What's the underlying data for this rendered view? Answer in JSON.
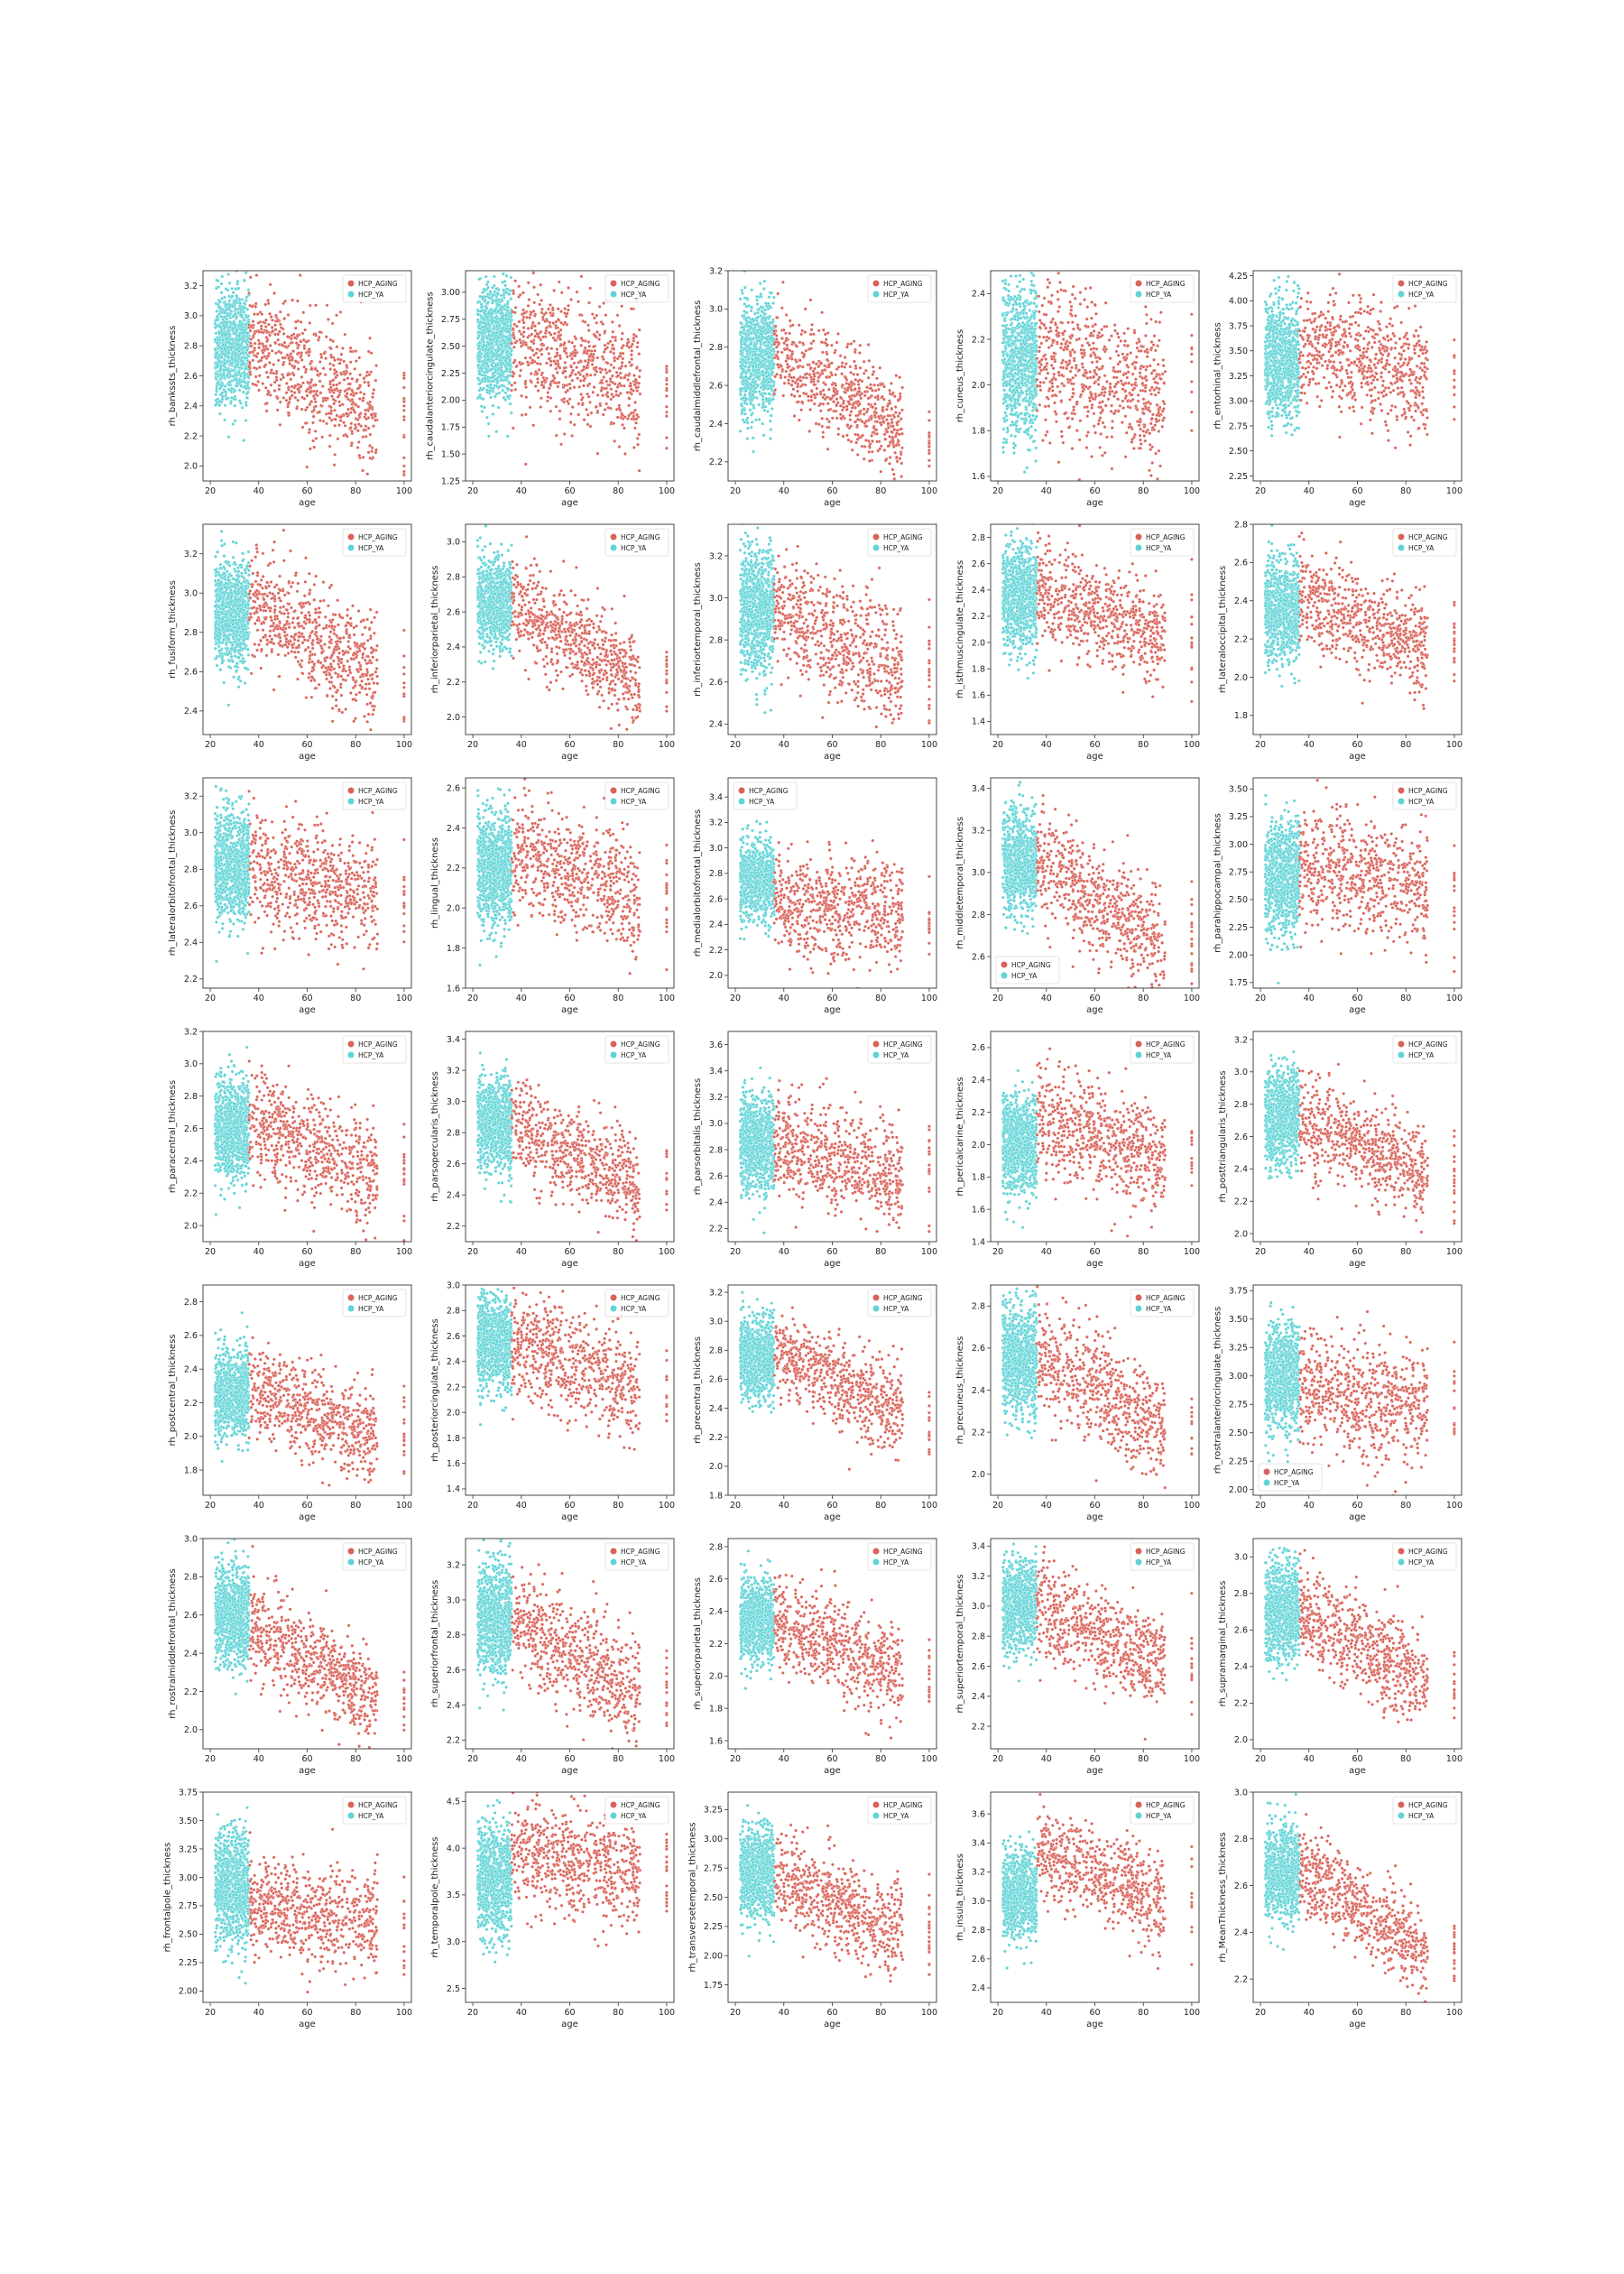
{
  "figure": {
    "legend_labels": [
      "HCP_AGING",
      "HCP_YA"
    ],
    "colors": {
      "HCP_AGING": "#d9635a",
      "HCP_YA": "#5fd3d6"
    },
    "x_label": "age",
    "x_ticks": [
      20,
      40,
      60,
      80,
      100
    ]
  },
  "chart_data": [
    {
      "type": "scatter",
      "ylabel": "rh_bankssts_thickness",
      "yticks": [
        2.0,
        2.2,
        2.4,
        2.6,
        2.8,
        3.0,
        3.2
      ],
      "ylim": [
        1.9,
        3.3
      ],
      "xlim": [
        17,
        103
      ],
      "ya_mean": 2.8,
      "ya_sd": 0.18,
      "ag_start": 2.85,
      "ag_end": 2.35,
      "ag_sd": 0.2,
      "legend": "top-right",
      "series": [
        {
          "name": "HCP_AGING"
        },
        {
          "name": "HCP_YA"
        }
      ]
    },
    {
      "type": "scatter",
      "ylabel": "rh_caudalanteriorcingulate_thickness",
      "yticks": [
        1.25,
        1.5,
        1.75,
        2.0,
        2.25,
        2.5,
        2.75,
        3.0
      ],
      "ylim": [
        1.25,
        3.2
      ],
      "xlim": [
        17,
        103
      ],
      "ya_mean": 2.55,
      "ya_sd": 0.28,
      "ag_start": 2.55,
      "ag_end": 2.15,
      "ag_sd": 0.3,
      "legend": "top-right",
      "series": [
        {
          "name": "HCP_AGING"
        },
        {
          "name": "HCP_YA"
        }
      ]
    },
    {
      "type": "scatter",
      "ylabel": "rh_caudalmiddlefrontal_thickness",
      "yticks": [
        2.2,
        2.4,
        2.6,
        2.8,
        3.0,
        3.2
      ],
      "ylim": [
        2.1,
        3.2
      ],
      "xlim": [
        17,
        103
      ],
      "ya_mean": 2.75,
      "ya_sd": 0.15,
      "ag_start": 2.8,
      "ag_end": 2.35,
      "ag_sd": 0.13,
      "legend": "top-right",
      "series": [
        {
          "name": "HCP_AGING"
        },
        {
          "name": "HCP_YA"
        }
      ]
    },
    {
      "type": "scatter",
      "ylabel": "rh_cuneus_thickness",
      "yticks": [
        1.6,
        1.8,
        2.0,
        2.2,
        2.4
      ],
      "ylim": [
        1.58,
        2.5
      ],
      "xlim": [
        17,
        103
      ],
      "ya_mean": 2.1,
      "ya_sd": 0.16,
      "ag_start": 2.15,
      "ag_end": 1.95,
      "ag_sd": 0.17,
      "legend": "top-right",
      "series": [
        {
          "name": "HCP_AGING"
        },
        {
          "name": "HCP_YA"
        }
      ]
    },
    {
      "type": "scatter",
      "ylabel": "rh_entorhinal_thickness",
      "yticks": [
        2.25,
        2.5,
        2.75,
        3.0,
        3.25,
        3.5,
        3.75,
        4.0,
        4.25
      ],
      "ylim": [
        2.2,
        4.3
      ],
      "xlim": [
        17,
        103
      ],
      "ya_mean": 3.4,
      "ya_sd": 0.3,
      "ag_start": 3.55,
      "ag_end": 3.25,
      "ag_sd": 0.28,
      "legend": "top-right",
      "series": [
        {
          "name": "HCP_AGING"
        },
        {
          "name": "HCP_YA"
        }
      ]
    },
    {
      "type": "scatter",
      "ylabel": "rh_fusiform_thickness",
      "yticks": [
        2.4,
        2.6,
        2.8,
        3.0,
        3.2
      ],
      "ylim": [
        2.28,
        3.35
      ],
      "xlim": [
        17,
        103
      ],
      "ya_mean": 2.9,
      "ya_sd": 0.13,
      "ag_start": 2.95,
      "ag_end": 2.6,
      "ag_sd": 0.14,
      "legend": "top-right",
      "series": [
        {
          "name": "HCP_AGING"
        },
        {
          "name": "HCP_YA"
        }
      ]
    },
    {
      "type": "scatter",
      "ylabel": "rh_inferiorparietal_thickness",
      "yticks": [
        2.0,
        2.2,
        2.4,
        2.6,
        2.8,
        3.0
      ],
      "ylim": [
        1.9,
        3.1
      ],
      "xlim": [
        17,
        103
      ],
      "ya_mean": 2.65,
      "ya_sd": 0.12,
      "ag_start": 2.65,
      "ag_end": 2.2,
      "ag_sd": 0.13,
      "legend": "top-right",
      "series": [
        {
          "name": "HCP_AGING"
        },
        {
          "name": "HCP_YA"
        }
      ]
    },
    {
      "type": "scatter",
      "ylabel": "rh_inferiortemporal_thickness",
      "yticks": [
        2.4,
        2.6,
        2.8,
        3.0,
        3.2
      ],
      "ylim": [
        2.35,
        3.35
      ],
      "xlim": [
        17,
        103
      ],
      "ya_mean": 2.95,
      "ya_sd": 0.15,
      "ag_start": 2.95,
      "ag_end": 2.65,
      "ag_sd": 0.14,
      "legend": "top-right",
      "series": [
        {
          "name": "HCP_AGING"
        },
        {
          "name": "HCP_YA"
        }
      ]
    },
    {
      "type": "scatter",
      "ylabel": "rh_isthmuscingulate_thickness",
      "yticks": [
        1.4,
        1.6,
        1.8,
        2.0,
        2.2,
        2.4,
        2.6,
        2.8
      ],
      "ylim": [
        1.3,
        2.9
      ],
      "xlim": [
        17,
        103
      ],
      "ya_mean": 2.35,
      "ya_sd": 0.2,
      "ag_start": 2.4,
      "ag_end": 2.05,
      "ag_sd": 0.18,
      "legend": "top-right",
      "series": [
        {
          "name": "HCP_AGING"
        },
        {
          "name": "HCP_YA"
        }
      ]
    },
    {
      "type": "scatter",
      "ylabel": "rh_lateraloccipital_thickness",
      "yticks": [
        1.8,
        2.0,
        2.2,
        2.4,
        2.6,
        2.8
      ],
      "ylim": [
        1.7,
        2.8
      ],
      "xlim": [
        17,
        103
      ],
      "ya_mean": 2.35,
      "ya_sd": 0.13,
      "ag_start": 2.42,
      "ag_end": 2.15,
      "ag_sd": 0.13,
      "legend": "top-right",
      "series": [
        {
          "name": "HCP_AGING"
        },
        {
          "name": "HCP_YA"
        }
      ]
    },
    {
      "type": "scatter",
      "ylabel": "rh_lateralorbitofrontal_thickness",
      "yticks": [
        2.2,
        2.4,
        2.6,
        2.8,
        3.0,
        3.2
      ],
      "ylim": [
        2.15,
        3.3
      ],
      "xlim": [
        17,
        103
      ],
      "ya_mean": 2.82,
      "ya_sd": 0.15,
      "ag_start": 2.8,
      "ag_end": 2.65,
      "ag_sd": 0.16,
      "legend": "top-right",
      "series": [
        {
          "name": "HCP_AGING"
        },
        {
          "name": "HCP_YA"
        }
      ]
    },
    {
      "type": "scatter",
      "ylabel": "rh_lingual_thickness",
      "yticks": [
        1.6,
        1.8,
        2.0,
        2.2,
        2.4,
        2.6
      ],
      "ylim": [
        1.6,
        2.65
      ],
      "xlim": [
        17,
        103
      ],
      "ya_mean": 2.2,
      "ya_sd": 0.14,
      "ag_start": 2.3,
      "ag_end": 2.05,
      "ag_sd": 0.14,
      "legend": "top-right",
      "series": [
        {
          "name": "HCP_AGING"
        },
        {
          "name": "HCP_YA"
        }
      ]
    },
    {
      "type": "scatter",
      "ylabel": "rh_medialorbitofrontal_thickness",
      "yticks": [
        2.0,
        2.2,
        2.4,
        2.6,
        2.8,
        3.0,
        3.2,
        3.4
      ],
      "ylim": [
        1.9,
        3.55
      ],
      "xlim": [
        17,
        103
      ],
      "ya_mean": 2.75,
      "ya_sd": 0.15,
      "ag_start": 2.55,
      "ag_end": 2.5,
      "ag_sd": 0.2,
      "legend": "top-left",
      "series": [
        {
          "name": "HCP_AGING"
        },
        {
          "name": "HCP_YA"
        }
      ]
    },
    {
      "type": "scatter",
      "ylabel": "rh_middletemporal_thickness",
      "yticks": [
        2.6,
        2.8,
        3.0,
        3.2,
        3.4
      ],
      "ylim": [
        2.45,
        3.45
      ],
      "xlim": [
        17,
        103
      ],
      "ya_mean": 3.05,
      "ya_sd": 0.12,
      "ag_start": 3.05,
      "ag_end": 2.65,
      "ag_sd": 0.13,
      "legend": "bottom-left",
      "series": [
        {
          "name": "HCP_AGING"
        },
        {
          "name": "HCP_YA"
        }
      ]
    },
    {
      "type": "scatter",
      "ylabel": "rh_parahippocampal_thickness",
      "yticks": [
        1.75,
        2.0,
        2.25,
        2.5,
        2.75,
        3.0,
        3.25,
        3.5
      ],
      "ylim": [
        1.7,
        3.6
      ],
      "xlim": [
        17,
        103
      ],
      "ya_mean": 2.72,
      "ya_sd": 0.25,
      "ag_start": 2.85,
      "ag_end": 2.55,
      "ag_sd": 0.27,
      "legend": "top-right",
      "series": [
        {
          "name": "HCP_AGING"
        },
        {
          "name": "HCP_YA"
        }
      ]
    },
    {
      "type": "scatter",
      "ylabel": "rh_paracentral_thickness",
      "yticks": [
        2.0,
        2.2,
        2.4,
        2.6,
        2.8,
        3.0,
        3.2
      ],
      "ylim": [
        1.9,
        3.2
      ],
      "xlim": [
        17,
        103
      ],
      "ya_mean": 2.6,
      "ya_sd": 0.16,
      "ag_start": 2.65,
      "ag_end": 2.3,
      "ag_sd": 0.17,
      "legend": "top-right",
      "series": [
        {
          "name": "HCP_AGING"
        },
        {
          "name": "HCP_YA"
        }
      ]
    },
    {
      "type": "scatter",
      "ylabel": "rh_parsopercularis_thickness",
      "yticks": [
        2.2,
        2.4,
        2.6,
        2.8,
        3.0,
        3.2,
        3.4
      ],
      "ylim": [
        2.1,
        3.45
      ],
      "xlim": [
        17,
        103
      ],
      "ya_mean": 2.85,
      "ya_sd": 0.15,
      "ag_start": 2.85,
      "ag_end": 2.45,
      "ag_sd": 0.15,
      "legend": "top-right",
      "series": [
        {
          "name": "HCP_AGING"
        },
        {
          "name": "HCP_YA"
        }
      ]
    },
    {
      "type": "scatter",
      "ylabel": "rh_parsorbitalis_thickness",
      "yticks": [
        2.2,
        2.4,
        2.6,
        2.8,
        3.0,
        3.2,
        3.4,
        3.6
      ],
      "ylim": [
        2.1,
        3.7
      ],
      "xlim": [
        17,
        103
      ],
      "ya_mean": 2.85,
      "ya_sd": 0.18,
      "ag_start": 2.85,
      "ag_end": 2.6,
      "ag_sd": 0.2,
      "legend": "top-right",
      "series": [
        {
          "name": "HCP_AGING"
        },
        {
          "name": "HCP_YA"
        }
      ]
    },
    {
      "type": "scatter",
      "ylabel": "rh_pericalcarine_thickness",
      "yticks": [
        1.4,
        1.6,
        1.8,
        2.0,
        2.2,
        2.4,
        2.6
      ],
      "ylim": [
        1.4,
        2.7
      ],
      "xlim": [
        17,
        103
      ],
      "ya_mean": 2.0,
      "ya_sd": 0.15,
      "ag_start": 2.15,
      "ag_end": 1.9,
      "ag_sd": 0.17,
      "legend": "top-right",
      "series": [
        {
          "name": "HCP_AGING"
        },
        {
          "name": "HCP_YA"
        }
      ]
    },
    {
      "type": "scatter",
      "ylabel": "rh_posttriangularis_thickness",
      "yticks": [
        2.0,
        2.2,
        2.4,
        2.6,
        2.8,
        3.0,
        3.2
      ],
      "ylim": [
        1.95,
        3.25
      ],
      "xlim": [
        17,
        103
      ],
      "ya_mean": 2.72,
      "ya_sd": 0.15,
      "ag_start": 2.72,
      "ag_end": 2.35,
      "ag_sd": 0.15,
      "legend": "top-right",
      "series": [
        {
          "name": "HCP_AGING"
        },
        {
          "name": "HCP_YA"
        }
      ]
    },
    {
      "type": "scatter",
      "ylabel": "rh_postcentral_thickness",
      "yticks": [
        1.8,
        2.0,
        2.2,
        2.4,
        2.6,
        2.8
      ],
      "ylim": [
        1.65,
        2.9
      ],
      "xlim": [
        17,
        103
      ],
      "ya_mean": 2.25,
      "ya_sd": 0.13,
      "ag_start": 2.28,
      "ag_end": 2.0,
      "ag_sd": 0.13,
      "legend": "top-right",
      "series": [
        {
          "name": "HCP_AGING"
        },
        {
          "name": "HCP_YA"
        }
      ]
    },
    {
      "type": "scatter",
      "ylabel": "rh_posteriorcingulate_thickness",
      "yticks": [
        1.4,
        1.6,
        1.8,
        2.0,
        2.2,
        2.4,
        2.6,
        2.8,
        3.0
      ],
      "ylim": [
        1.35,
        3.0
      ],
      "xlim": [
        17,
        103
      ],
      "ya_mean": 2.55,
      "ya_sd": 0.18,
      "ag_start": 2.55,
      "ag_end": 2.15,
      "ag_sd": 0.2,
      "legend": "top-right",
      "series": [
        {
          "name": "HCP_AGING"
        },
        {
          "name": "HCP_YA"
        }
      ]
    },
    {
      "type": "scatter",
      "ylabel": "rh_precentral_thickness",
      "yticks": [
        1.8,
        2.0,
        2.2,
        2.4,
        2.6,
        2.8,
        3.0,
        3.2
      ],
      "ylim": [
        1.8,
        3.25
      ],
      "xlim": [
        17,
        103
      ],
      "ya_mean": 2.75,
      "ya_sd": 0.14,
      "ag_start": 2.8,
      "ag_end": 2.35,
      "ag_sd": 0.15,
      "legend": "top-right",
      "series": [
        {
          "name": "HCP_AGING"
        },
        {
          "name": "HCP_YA"
        }
      ]
    },
    {
      "type": "scatter",
      "ylabel": "rh_precuneus_thickness",
      "yticks": [
        2.0,
        2.2,
        2.4,
        2.6,
        2.8
      ],
      "ylim": [
        1.9,
        2.9
      ],
      "xlim": [
        17,
        103
      ],
      "ya_mean": 2.55,
      "ya_sd": 0.13,
      "ag_start": 2.6,
      "ag_end": 2.2,
      "ag_sd": 0.13,
      "legend": "top-right",
      "series": [
        {
          "name": "HCP_AGING"
        },
        {
          "name": "HCP_YA"
        }
      ]
    },
    {
      "type": "scatter",
      "ylabel": "rh_rostralanteriorcingulate_thickness",
      "yticks": [
        2.0,
        2.25,
        2.5,
        2.75,
        3.0,
        3.25,
        3.5,
        3.75
      ],
      "ylim": [
        1.95,
        3.8
      ],
      "xlim": [
        17,
        103
      ],
      "ya_mean": 3.0,
      "ya_sd": 0.22,
      "ag_start": 2.85,
      "ag_end": 2.75,
      "ag_sd": 0.25,
      "legend": "bottom-left",
      "series": [
        {
          "name": "HCP_AGING"
        },
        {
          "name": "HCP_YA"
        }
      ]
    },
    {
      "type": "scatter",
      "ylabel": "rh_rostralmiddlefrontal_thickness",
      "yticks": [
        2.0,
        2.2,
        2.4,
        2.6,
        2.8,
        3.0
      ],
      "ylim": [
        1.9,
        3.0
      ],
      "xlim": [
        17,
        103
      ],
      "ya_mean": 2.6,
      "ya_sd": 0.13,
      "ag_start": 2.55,
      "ag_end": 2.15,
      "ag_sd": 0.12,
      "legend": "top-right",
      "series": [
        {
          "name": "HCP_AGING"
        },
        {
          "name": "HCP_YA"
        }
      ]
    },
    {
      "type": "scatter",
      "ylabel": "rh_superiorfrontal_thickness",
      "yticks": [
        2.2,
        2.4,
        2.6,
        2.8,
        3.0,
        3.2
      ],
      "ylim": [
        2.15,
        3.35
      ],
      "xlim": [
        17,
        103
      ],
      "ya_mean": 2.9,
      "ya_sd": 0.16,
      "ag_start": 2.9,
      "ag_end": 2.45,
      "ag_sd": 0.15,
      "legend": "top-right",
      "series": [
        {
          "name": "HCP_AGING"
        },
        {
          "name": "HCP_YA"
        }
      ]
    },
    {
      "type": "scatter",
      "ylabel": "rh_superiorparietal_thickness",
      "yticks": [
        1.6,
        1.8,
        2.0,
        2.2,
        2.4,
        2.6,
        2.8
      ],
      "ylim": [
        1.55,
        2.85
      ],
      "xlim": [
        17,
        103
      ],
      "ya_mean": 2.35,
      "ya_sd": 0.13,
      "ag_start": 2.35,
      "ag_end": 2.0,
      "ag_sd": 0.14,
      "legend": "top-right",
      "series": [
        {
          "name": "HCP_AGING"
        },
        {
          "name": "HCP_YA"
        }
      ]
    },
    {
      "type": "scatter",
      "ylabel": "rh_superiortemporal_thickness",
      "yticks": [
        2.2,
        2.4,
        2.6,
        2.8,
        3.0,
        3.2,
        3.4
      ],
      "ylim": [
        2.05,
        3.45
      ],
      "xlim": [
        17,
        103
      ],
      "ya_mean": 3.0,
      "ya_sd": 0.15,
      "ag_start": 3.0,
      "ag_end": 2.6,
      "ag_sd": 0.15,
      "legend": "top-right",
      "series": [
        {
          "name": "HCP_AGING"
        },
        {
          "name": "HCP_YA"
        }
      ]
    },
    {
      "type": "scatter",
      "ylabel": "rh_supramarginal_thickness",
      "yticks": [
        2.0,
        2.2,
        2.4,
        2.6,
        2.8,
        3.0
      ],
      "ylim": [
        1.95,
        3.1
      ],
      "xlim": [
        17,
        103
      ],
      "ya_mean": 2.7,
      "ya_sd": 0.13,
      "ag_start": 2.7,
      "ag_end": 2.3,
      "ag_sd": 0.13,
      "legend": "top-right",
      "series": [
        {
          "name": "HCP_AGING"
        },
        {
          "name": "HCP_YA"
        }
      ]
    },
    {
      "type": "scatter",
      "ylabel": "rh_frontalpole_thickness",
      "yticks": [
        2.0,
        2.25,
        2.5,
        2.75,
        3.0,
        3.25,
        3.5,
        3.75
      ],
      "ylim": [
        1.9,
        3.75
      ],
      "xlim": [
        17,
        103
      ],
      "ya_mean": 2.9,
      "ya_sd": 0.25,
      "ag_start": 2.75,
      "ag_end": 2.6,
      "ag_sd": 0.22,
      "legend": "top-right",
      "series": [
        {
          "name": "HCP_AGING"
        },
        {
          "name": "HCP_YA"
        }
      ]
    },
    {
      "type": "scatter",
      "ylabel": "rh_temporalpole_thickness",
      "yticks": [
        2.5,
        3.0,
        3.5,
        4.0,
        4.5
      ],
      "ylim": [
        2.35,
        4.6
      ],
      "xlim": [
        17,
        103
      ],
      "ya_mean": 3.65,
      "ya_sd": 0.3,
      "ag_start": 4.0,
      "ag_end": 3.7,
      "ag_sd": 0.28,
      "legend": "top-right",
      "series": [
        {
          "name": "HCP_AGING"
        },
        {
          "name": "HCP_YA"
        }
      ]
    },
    {
      "type": "scatter",
      "ylabel": "rh_transversetemporal_thickness",
      "yticks": [
        1.75,
        2.0,
        2.25,
        2.5,
        2.75,
        3.0,
        3.25
      ],
      "ylim": [
        1.6,
        3.4
      ],
      "xlim": [
        17,
        103
      ],
      "ya_mean": 2.72,
      "ya_sd": 0.2,
      "ag_start": 2.7,
      "ag_end": 2.2,
      "ag_sd": 0.2,
      "legend": "top-right",
      "series": [
        {
          "name": "HCP_AGING"
        },
        {
          "name": "HCP_YA"
        }
      ]
    },
    {
      "type": "scatter",
      "ylabel": "rh_insula_thickness",
      "yticks": [
        2.4,
        2.6,
        2.8,
        3.0,
        3.2,
        3.4,
        3.6
      ],
      "ylim": [
        2.3,
        3.75
      ],
      "xlim": [
        17,
        103
      ],
      "ya_mean": 3.05,
      "ya_sd": 0.15,
      "ag_start": 3.35,
      "ag_end": 3.0,
      "ag_sd": 0.15,
      "legend": "top-right",
      "series": [
        {
          "name": "HCP_AGING"
        },
        {
          "name": "HCP_YA"
        }
      ]
    },
    {
      "type": "scatter",
      "ylabel": "rh_MeanThickness_thickness",
      "yticks": [
        2.2,
        2.4,
        2.6,
        2.8,
        3.0
      ],
      "ylim": [
        2.1,
        3.0
      ],
      "xlim": [
        17,
        103
      ],
      "ya_mean": 2.65,
      "ya_sd": 0.1,
      "ag_start": 2.68,
      "ag_end": 2.3,
      "ag_sd": 0.09,
      "legend": "top-right",
      "series": [
        {
          "name": "HCP_AGING"
        },
        {
          "name": "HCP_YA"
        }
      ]
    }
  ]
}
